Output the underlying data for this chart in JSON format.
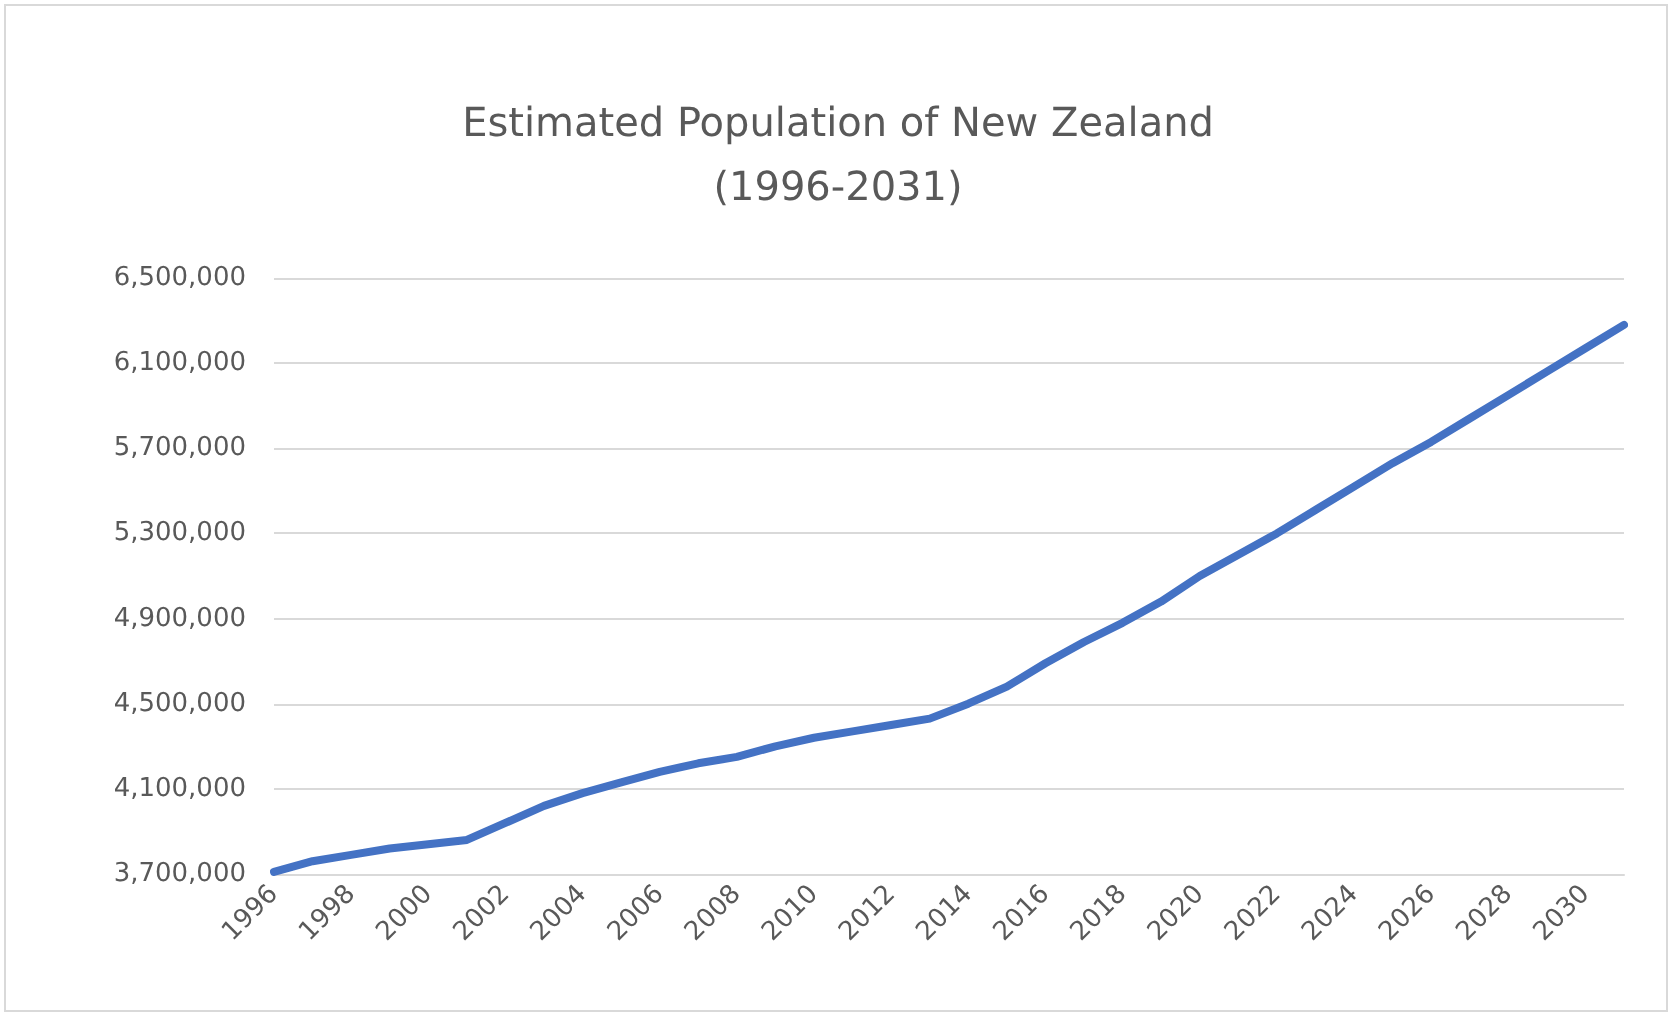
{
  "chart_data": {
    "type": "line",
    "title": "Estimated Population of New Zealand\n(1996-2031)",
    "categories": [
      "1996",
      null,
      "1998",
      null,
      "2000",
      null,
      "2002",
      null,
      "2004",
      null,
      "2006",
      null,
      "2008",
      null,
      "2010",
      null,
      "2012",
      null,
      "2014",
      null,
      "2016",
      null,
      "2018",
      null,
      "2020",
      null,
      "2022",
      null,
      "2024",
      null,
      "2026",
      null,
      "2028",
      null,
      "2030",
      null
    ],
    "series": [
      {
        "color": "#4472c4",
        "values": [
          3710000,
          3760000,
          3790000,
          3820000,
          3840000,
          3860000,
          3940000,
          4020000,
          4080000,
          4130000,
          4180000,
          4220000,
          4250000,
          4300000,
          4340000,
          4370000,
          4400000,
          4430000,
          4500000,
          4580000,
          4690000,
          4790000,
          4880000,
          4980000,
          5100000,
          5200000,
          5300000,
          5410000,
          5520000,
          5630000,
          5730000,
          5840000,
          5950000,
          6060000,
          6170000,
          6280000
        ]
      }
    ],
    "ylim": [
      3700000,
      6500000
    ],
    "yticks": [
      {
        "value": 3700000,
        "label": "3,700,000"
      },
      {
        "value": 4100000,
        "label": "4,100,000"
      },
      {
        "value": 4500000,
        "label": "4,500,000"
      },
      {
        "value": 4900000,
        "label": "4,900,000"
      },
      {
        "value": 5300000,
        "label": "5,300,000"
      },
      {
        "value": 5700000,
        "label": "5,700,000"
      },
      {
        "value": 6100000,
        "label": "6,100,000"
      },
      {
        "value": 6500000,
        "label": "6,500,000"
      }
    ],
    "grid": "y",
    "marker": "none",
    "line_style": "solid"
  }
}
